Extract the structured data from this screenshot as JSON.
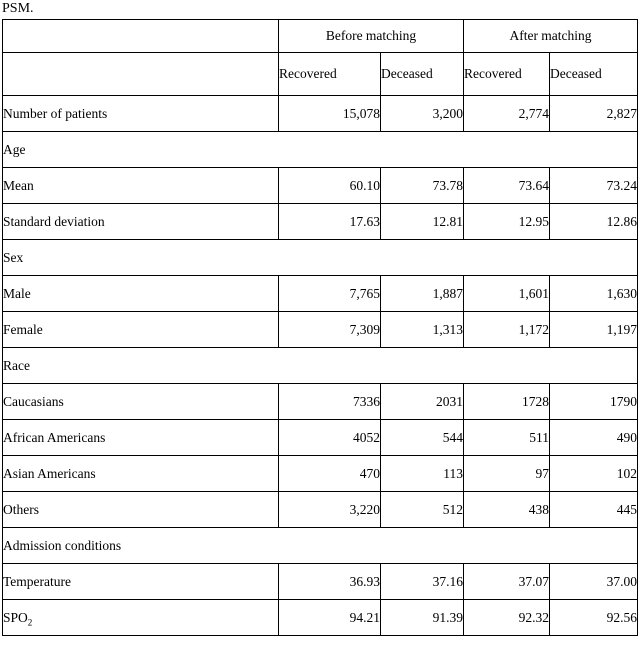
{
  "page": {
    "caption": "PSM."
  },
  "table": {
    "col_groups": [
      {
        "label": "Before matching"
      },
      {
        "label": "After matching"
      }
    ],
    "sub_headers": [
      "Recovered",
      "Deceased",
      "Recovered",
      "Deceased"
    ],
    "rows": [
      {
        "type": "data",
        "label": "Number of patients",
        "values": [
          "15,078",
          "3,200",
          "2,774",
          "2,827"
        ]
      },
      {
        "type": "section",
        "label": "Age"
      },
      {
        "type": "data",
        "label": "Mean",
        "values": [
          "60.10",
          "73.78",
          "73.64",
          "73.24"
        ]
      },
      {
        "type": "data",
        "label": "Standard deviation",
        "values": [
          "17.63",
          "12.81",
          "12.95",
          "12.86"
        ]
      },
      {
        "type": "section",
        "label": "Sex"
      },
      {
        "type": "data",
        "label": "Male",
        "values": [
          "7,765",
          "1,887",
          "1,601",
          "1,630"
        ]
      },
      {
        "type": "data",
        "label": "Female",
        "values": [
          "7,309",
          "1,313",
          "1,172",
          "1,197"
        ]
      },
      {
        "type": "section",
        "label": "Race"
      },
      {
        "type": "data",
        "label": "Caucasians",
        "values": [
          "7336",
          "2031",
          "1728",
          "1790"
        ]
      },
      {
        "type": "data",
        "label": "African Americans",
        "values": [
          "4052",
          "544",
          "511",
          "490"
        ]
      },
      {
        "type": "data",
        "label": "Asian Americans",
        "values": [
          "470",
          "113",
          "97",
          "102"
        ]
      },
      {
        "type": "data",
        "label": "Others",
        "values": [
          "3,220",
          "512",
          "438",
          "445"
        ]
      },
      {
        "type": "section",
        "label": "Admission conditions"
      },
      {
        "type": "data",
        "label": "Temperature",
        "values": [
          "36.93",
          "37.16",
          "37.07",
          "37.00"
        ]
      },
      {
        "type": "data",
        "label": "SPO",
        "label_sub": "2",
        "values": [
          "94.21",
          "91.39",
          "92.32",
          "92.56"
        ]
      }
    ]
  }
}
